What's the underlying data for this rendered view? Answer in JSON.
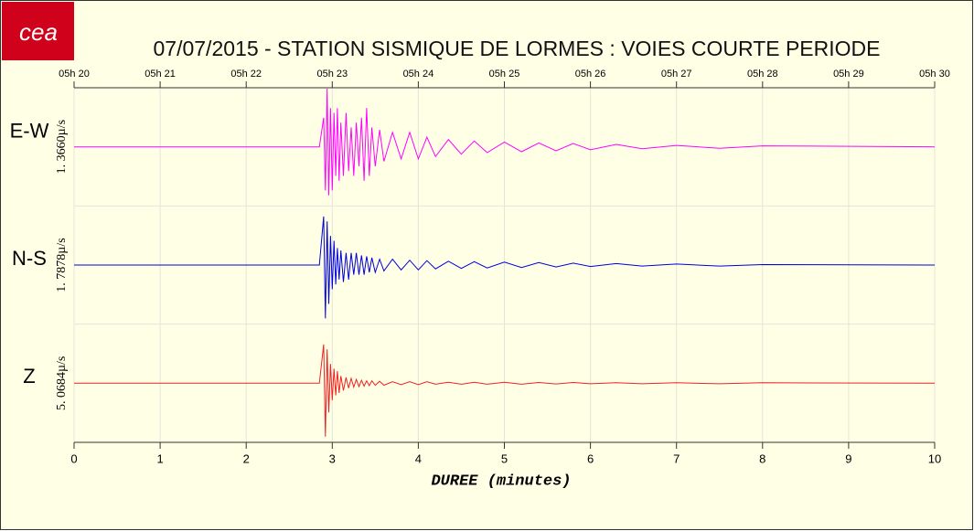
{
  "chart_data": {
    "type": "line",
    "title": "07/07/2015  -  STATION SISMIQUE DE LORMES : VOIES COURTE PERIODE",
    "logo": "cea",
    "xlabel": "DUREE (minutes)",
    "xlim": [
      0,
      10
    ],
    "xticks": [
      0,
      1,
      2,
      3,
      4,
      5,
      6,
      7,
      8,
      9,
      10
    ],
    "x2ticks": [
      {
        "value": 0,
        "label": "05h 20"
      },
      {
        "value": 1,
        "label": "05h 21"
      },
      {
        "value": 2,
        "label": "05h 22"
      },
      {
        "value": 3,
        "label": "05h 23"
      },
      {
        "value": 4,
        "label": "05h 24"
      },
      {
        "value": 5,
        "label": "05h 25"
      },
      {
        "value": 6,
        "label": "05h 26"
      },
      {
        "value": 7,
        "label": "05h 27"
      },
      {
        "value": 8,
        "label": "05h 28"
      },
      {
        "value": 9,
        "label": "05h 29"
      },
      {
        "value": 10,
        "label": "05h 30"
      }
    ],
    "ylim": [
      -1.2,
      1.2
    ],
    "grid": true,
    "x": [
      0,
      2.85,
      2.9,
      2.92,
      2.94,
      2.96,
      2.98,
      3.0,
      3.02,
      3.04,
      3.06,
      3.08,
      3.1,
      3.13,
      3.16,
      3.19,
      3.22,
      3.25,
      3.28,
      3.31,
      3.34,
      3.37,
      3.4,
      3.43,
      3.46,
      3.5,
      3.55,
      3.6,
      3.7,
      3.8,
      3.9,
      4.0,
      4.1,
      4.2,
      4.35,
      4.5,
      4.65,
      4.8,
      5.0,
      5.2,
      5.4,
      5.6,
      5.8,
      6.0,
      6.3,
      6.6,
      7.0,
      7.5,
      8.0,
      10
    ],
    "series": [
      {
        "name": "E-W",
        "scale_label": "1. 3660µ/s",
        "color": "#ff00ff",
        "values": [
          0,
          0,
          0.6,
          -0.9,
          1.2,
          -1.0,
          0.8,
          -0.9,
          0.7,
          -0.6,
          0.8,
          -0.7,
          0.5,
          -0.6,
          0.7,
          -0.5,
          0.4,
          -0.6,
          0.5,
          -0.4,
          0.6,
          -0.7,
          0.8,
          -0.6,
          0.4,
          -0.4,
          0.35,
          -0.3,
          0.3,
          -0.25,
          0.3,
          -0.25,
          0.2,
          -0.2,
          0.15,
          -0.15,
          0.12,
          -0.12,
          0.1,
          -0.1,
          0.08,
          -0.08,
          0.07,
          -0.06,
          0.05,
          -0.04,
          0.03,
          -0.03,
          0.02,
          0
        ]
      },
      {
        "name": "N-S",
        "scale_label": "1. 7878µ/s",
        "color": "#0000dd",
        "values": [
          0,
          0,
          1.0,
          -1.1,
          0.9,
          -0.8,
          0.6,
          -0.5,
          0.5,
          -0.4,
          0.35,
          -0.3,
          0.3,
          -0.35,
          0.25,
          -0.3,
          0.25,
          -0.2,
          0.25,
          -0.2,
          0.2,
          -0.2,
          0.18,
          -0.15,
          0.15,
          -0.15,
          0.12,
          -0.12,
          0.12,
          -0.1,
          0.1,
          -0.1,
          0.09,
          -0.08,
          0.08,
          -0.07,
          0.07,
          -0.06,
          0.06,
          -0.05,
          0.05,
          -0.04,
          0.04,
          -0.03,
          0.03,
          -0.02,
          0.02,
          -0.02,
          0.01,
          0
        ]
      },
      {
        "name": "Z",
        "scale_label": "5. 0684µ/s",
        "color": "#ee2222",
        "values": [
          0,
          0,
          0.8,
          -1.1,
          0.7,
          -0.6,
          0.4,
          -0.35,
          0.3,
          -0.25,
          0.25,
          -0.2,
          0.15,
          -0.15,
          0.12,
          -0.1,
          0.1,
          -0.08,
          0.08,
          -0.07,
          0.06,
          -0.06,
          0.05,
          -0.05,
          0.05,
          -0.04,
          0.04,
          -0.04,
          0.03,
          -0.03,
          0.03,
          -0.03,
          0.03,
          -0.02,
          0.02,
          -0.02,
          0.02,
          -0.02,
          0.02,
          -0.02,
          0.015,
          -0.015,
          0.015,
          -0.01,
          0.01,
          -0.01,
          0.01,
          -0.01,
          0.01,
          0
        ]
      }
    ]
  }
}
